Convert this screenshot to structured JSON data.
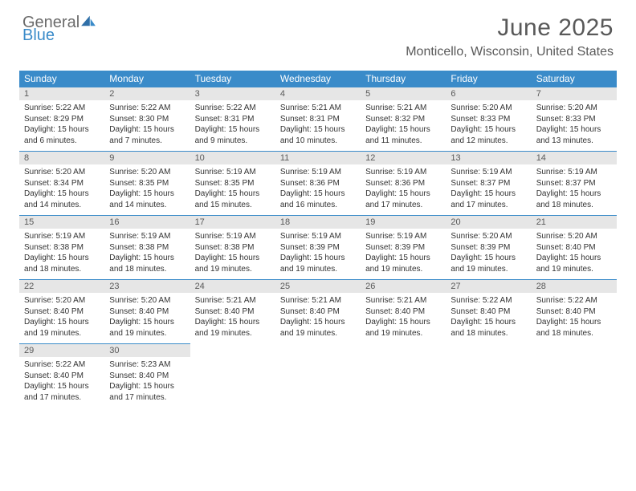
{
  "brand": {
    "word1": "General",
    "word2": "Blue",
    "color_general": "#6b6b6b",
    "color_blue": "#3a8bc9"
  },
  "title": "June 2025",
  "location": "Monticello, Wisconsin, United States",
  "colors": {
    "header_bg": "#3a8bc9",
    "header_text": "#ffffff",
    "daynum_bg": "#e6e6e6",
    "daynum_text": "#595959",
    "cell_border": "#3a8bc9",
    "body_text": "#333333",
    "page_bg": "#ffffff"
  },
  "typography": {
    "title_fontsize": 30,
    "location_fontsize": 16,
    "weekday_fontsize": 12,
    "daynum_fontsize": 11,
    "body_fontsize": 10
  },
  "weekdays": [
    "Sunday",
    "Monday",
    "Tuesday",
    "Wednesday",
    "Thursday",
    "Friday",
    "Saturday"
  ],
  "weeks": [
    [
      {
        "n": "1",
        "sunrise": "Sunrise: 5:22 AM",
        "sunset": "Sunset: 8:29 PM",
        "daylight": "Daylight: 15 hours and 6 minutes."
      },
      {
        "n": "2",
        "sunrise": "Sunrise: 5:22 AM",
        "sunset": "Sunset: 8:30 PM",
        "daylight": "Daylight: 15 hours and 7 minutes."
      },
      {
        "n": "3",
        "sunrise": "Sunrise: 5:22 AM",
        "sunset": "Sunset: 8:31 PM",
        "daylight": "Daylight: 15 hours and 9 minutes."
      },
      {
        "n": "4",
        "sunrise": "Sunrise: 5:21 AM",
        "sunset": "Sunset: 8:31 PM",
        "daylight": "Daylight: 15 hours and 10 minutes."
      },
      {
        "n": "5",
        "sunrise": "Sunrise: 5:21 AM",
        "sunset": "Sunset: 8:32 PM",
        "daylight": "Daylight: 15 hours and 11 minutes."
      },
      {
        "n": "6",
        "sunrise": "Sunrise: 5:20 AM",
        "sunset": "Sunset: 8:33 PM",
        "daylight": "Daylight: 15 hours and 12 minutes."
      },
      {
        "n": "7",
        "sunrise": "Sunrise: 5:20 AM",
        "sunset": "Sunset: 8:33 PM",
        "daylight": "Daylight: 15 hours and 13 minutes."
      }
    ],
    [
      {
        "n": "8",
        "sunrise": "Sunrise: 5:20 AM",
        "sunset": "Sunset: 8:34 PM",
        "daylight": "Daylight: 15 hours and 14 minutes."
      },
      {
        "n": "9",
        "sunrise": "Sunrise: 5:20 AM",
        "sunset": "Sunset: 8:35 PM",
        "daylight": "Daylight: 15 hours and 14 minutes."
      },
      {
        "n": "10",
        "sunrise": "Sunrise: 5:19 AM",
        "sunset": "Sunset: 8:35 PM",
        "daylight": "Daylight: 15 hours and 15 minutes."
      },
      {
        "n": "11",
        "sunrise": "Sunrise: 5:19 AM",
        "sunset": "Sunset: 8:36 PM",
        "daylight": "Daylight: 15 hours and 16 minutes."
      },
      {
        "n": "12",
        "sunrise": "Sunrise: 5:19 AM",
        "sunset": "Sunset: 8:36 PM",
        "daylight": "Daylight: 15 hours and 17 minutes."
      },
      {
        "n": "13",
        "sunrise": "Sunrise: 5:19 AM",
        "sunset": "Sunset: 8:37 PM",
        "daylight": "Daylight: 15 hours and 17 minutes."
      },
      {
        "n": "14",
        "sunrise": "Sunrise: 5:19 AM",
        "sunset": "Sunset: 8:37 PM",
        "daylight": "Daylight: 15 hours and 18 minutes."
      }
    ],
    [
      {
        "n": "15",
        "sunrise": "Sunrise: 5:19 AM",
        "sunset": "Sunset: 8:38 PM",
        "daylight": "Daylight: 15 hours and 18 minutes."
      },
      {
        "n": "16",
        "sunrise": "Sunrise: 5:19 AM",
        "sunset": "Sunset: 8:38 PM",
        "daylight": "Daylight: 15 hours and 18 minutes."
      },
      {
        "n": "17",
        "sunrise": "Sunrise: 5:19 AM",
        "sunset": "Sunset: 8:38 PM",
        "daylight": "Daylight: 15 hours and 19 minutes."
      },
      {
        "n": "18",
        "sunrise": "Sunrise: 5:19 AM",
        "sunset": "Sunset: 8:39 PM",
        "daylight": "Daylight: 15 hours and 19 minutes."
      },
      {
        "n": "19",
        "sunrise": "Sunrise: 5:19 AM",
        "sunset": "Sunset: 8:39 PM",
        "daylight": "Daylight: 15 hours and 19 minutes."
      },
      {
        "n": "20",
        "sunrise": "Sunrise: 5:20 AM",
        "sunset": "Sunset: 8:39 PM",
        "daylight": "Daylight: 15 hours and 19 minutes."
      },
      {
        "n": "21",
        "sunrise": "Sunrise: 5:20 AM",
        "sunset": "Sunset: 8:40 PM",
        "daylight": "Daylight: 15 hours and 19 minutes."
      }
    ],
    [
      {
        "n": "22",
        "sunrise": "Sunrise: 5:20 AM",
        "sunset": "Sunset: 8:40 PM",
        "daylight": "Daylight: 15 hours and 19 minutes."
      },
      {
        "n": "23",
        "sunrise": "Sunrise: 5:20 AM",
        "sunset": "Sunset: 8:40 PM",
        "daylight": "Daylight: 15 hours and 19 minutes."
      },
      {
        "n": "24",
        "sunrise": "Sunrise: 5:21 AM",
        "sunset": "Sunset: 8:40 PM",
        "daylight": "Daylight: 15 hours and 19 minutes."
      },
      {
        "n": "25",
        "sunrise": "Sunrise: 5:21 AM",
        "sunset": "Sunset: 8:40 PM",
        "daylight": "Daylight: 15 hours and 19 minutes."
      },
      {
        "n": "26",
        "sunrise": "Sunrise: 5:21 AM",
        "sunset": "Sunset: 8:40 PM",
        "daylight": "Daylight: 15 hours and 19 minutes."
      },
      {
        "n": "27",
        "sunrise": "Sunrise: 5:22 AM",
        "sunset": "Sunset: 8:40 PM",
        "daylight": "Daylight: 15 hours and 18 minutes."
      },
      {
        "n": "28",
        "sunrise": "Sunrise: 5:22 AM",
        "sunset": "Sunset: 8:40 PM",
        "daylight": "Daylight: 15 hours and 18 minutes."
      }
    ],
    [
      {
        "n": "29",
        "sunrise": "Sunrise: 5:22 AM",
        "sunset": "Sunset: 8:40 PM",
        "daylight": "Daylight: 15 hours and 17 minutes."
      },
      {
        "n": "30",
        "sunrise": "Sunrise: 5:23 AM",
        "sunset": "Sunset: 8:40 PM",
        "daylight": "Daylight: 15 hours and 17 minutes."
      },
      null,
      null,
      null,
      null,
      null
    ]
  ]
}
